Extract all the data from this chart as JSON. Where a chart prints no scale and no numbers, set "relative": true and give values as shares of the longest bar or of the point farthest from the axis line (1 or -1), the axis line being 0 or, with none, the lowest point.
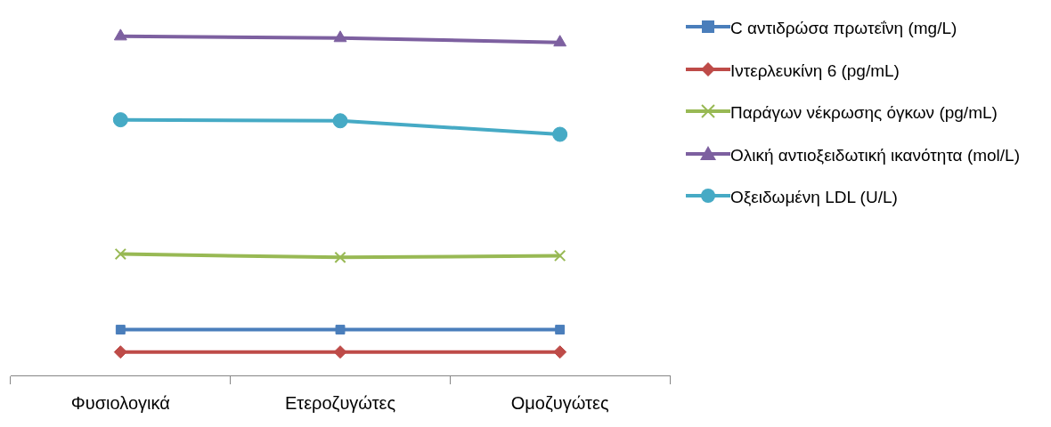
{
  "chart_data": {
    "type": "line",
    "relative": true,
    "legend": "right",
    "categories": [
      "Φυσιολογικά",
      "Ετεροζυγώτες",
      "Ομοζυγώτες"
    ],
    "series": [
      {
        "name": "C αντιδρώσα πρωτεΐνη (mg/L)",
        "color": "#4a7ebb",
        "marker": "square",
        "values": [
          0.135,
          0.135,
          0.135
        ]
      },
      {
        "name": "Ιντερλευκίνη 6 (pg/mL)",
        "color": "#be4b48",
        "marker": "diamond",
        "values": [
          0.069,
          0.069,
          0.069
        ]
      },
      {
        "name": "Παράγων νέκρωσης όγκων (pg/mL)",
        "color": "#98b954",
        "marker": "cross",
        "values": [
          0.358,
          0.348,
          0.353
        ]
      },
      {
        "name": "Ολική αντιοξειδωτική ικανότητα (mol/L)",
        "color": "#7d60a0",
        "marker": "triangle",
        "values": [
          1,
          0.995,
          0.982
        ]
      },
      {
        "name": "Οξειδωμένη LDL (U/L)",
        "color": "#46aac5",
        "marker": "circle",
        "values": [
          0.754,
          0.751,
          0.711
        ]
      }
    ]
  }
}
